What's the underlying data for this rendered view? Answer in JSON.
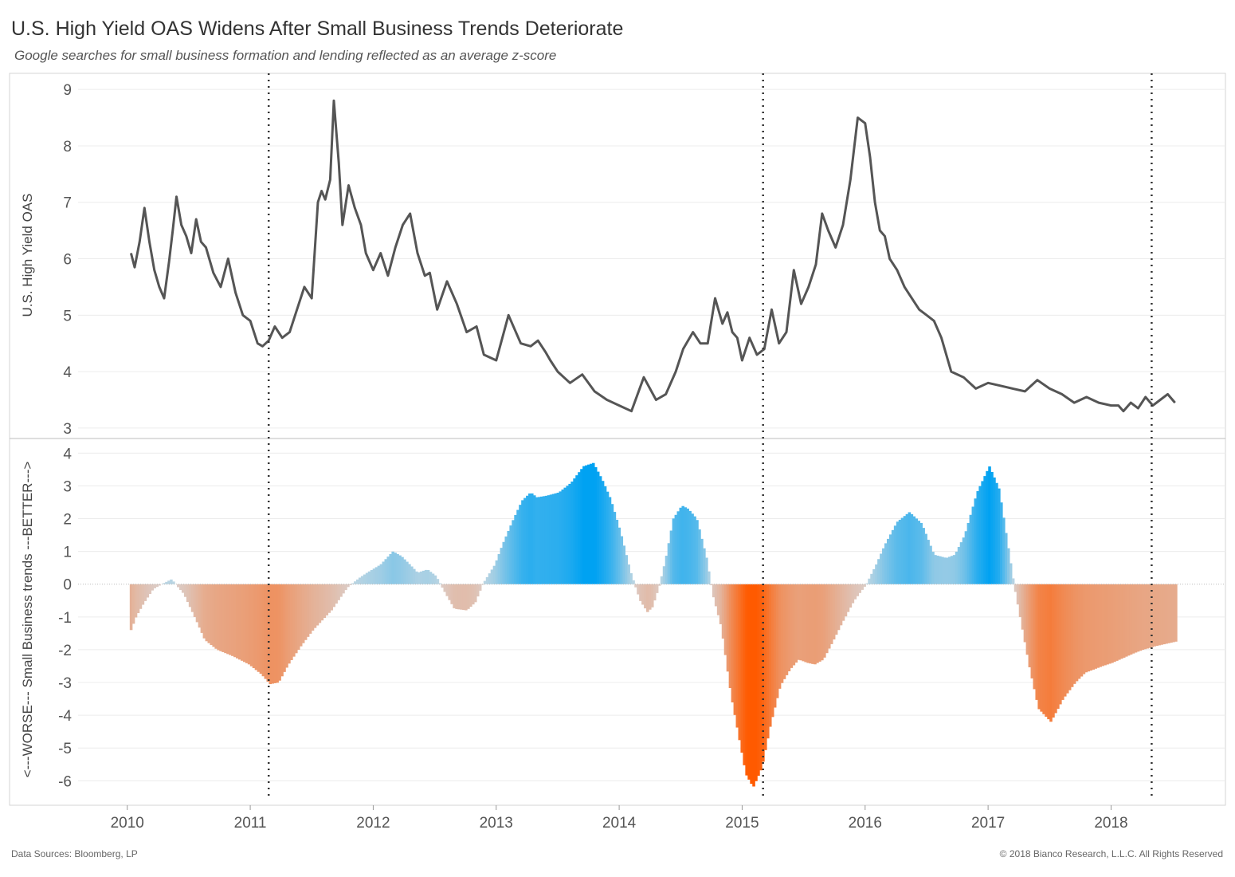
{
  "header": {
    "title": "U.S. High Yield OAS Widens After Small Business Trends Deteriorate",
    "subtitle": "Google searches for small business formation and lending reflected as an average z-score"
  },
  "footer": {
    "source": "Data Sources: Bloomberg, LP",
    "copyright": "© 2018 Bianco Research, L.L.C. All Rights Reserved"
  },
  "colors": {
    "line": "#555555",
    "positive_strong": "#00a2f2",
    "positive_weak": "#bfd6e2",
    "negative_strong": "#ff5a00",
    "negative_weak": "#dcccc6",
    "grid": "#ececec",
    "marker": "#333333"
  },
  "chart_data": [
    {
      "type": "line",
      "title": "U.S. High Yield OAS",
      "ylabel": "U.S. High Yield OAS",
      "ylim": [
        2.9,
        9.2
      ],
      "yticks": [
        3,
        4,
        5,
        6,
        7,
        8,
        9
      ],
      "xlim": [
        2009.6,
        2018.93
      ],
      "xticks": [
        2010,
        2011,
        2012,
        2013,
        2014,
        2015,
        2016,
        2017,
        2018
      ],
      "vertical_markers": [
        2011.15,
        2015.17,
        2018.33
      ],
      "grid": true,
      "series": [
        {
          "x": [
            2010.03,
            2010.06,
            2010.1,
            2010.14,
            2010.18,
            2010.22,
            2010.26,
            2010.3,
            2010.34,
            2010.37,
            2010.4,
            2010.44,
            2010.48,
            2010.52,
            2010.56,
            2010.6,
            2010.64,
            2010.7,
            2010.76,
            2010.82,
            2010.88,
            2010.94,
            2011.0,
            2011.06,
            2011.1,
            2011.15,
            2011.2,
            2011.26,
            2011.32,
            2011.38,
            2011.44,
            2011.5,
            2011.55,
            2011.58,
            2011.61,
            2011.65,
            2011.68,
            2011.72,
            2011.75,
            2011.8,
            2011.85,
            2011.9,
            2011.94,
            2012.0,
            2012.06,
            2012.12,
            2012.18,
            2012.24,
            2012.3,
            2012.36,
            2012.42,
            2012.46,
            2012.52,
            2012.6,
            2012.68,
            2012.76,
            2012.84,
            2012.9,
            2013.0,
            2013.1,
            2013.2,
            2013.28,
            2013.34,
            2013.4,
            2013.44,
            2013.5,
            2013.6,
            2013.7,
            2013.8,
            2013.9,
            2014.0,
            2014.1,
            2014.2,
            2014.3,
            2014.38,
            2014.46,
            2014.52,
            2014.6,
            2014.66,
            2014.72,
            2014.78,
            2014.84,
            2014.88,
            2014.92,
            2014.96,
            2015.0,
            2015.06,
            2015.12,
            2015.18,
            2015.24,
            2015.3,
            2015.36,
            2015.42,
            2015.48,
            2015.54,
            2015.6,
            2015.65,
            2015.7,
            2015.76,
            2015.82,
            2015.88,
            2015.94,
            2016.0,
            2016.04,
            2016.08,
            2016.12,
            2016.16,
            2016.2,
            2016.26,
            2016.32,
            2016.38,
            2016.44,
            2016.5,
            2016.56,
            2016.62,
            2016.7,
            2016.8,
            2016.9,
            2017.0,
            2017.1,
            2017.2,
            2017.3,
            2017.4,
            2017.5,
            2017.6,
            2017.7,
            2017.8,
            2017.9,
            2018.0,
            2018.06,
            2018.1,
            2018.16,
            2018.22,
            2018.28,
            2018.34,
            2018.4,
            2018.46,
            2018.52
          ],
          "y": [
            6.1,
            5.85,
            6.3,
            6.9,
            6.3,
            5.8,
            5.5,
            5.3,
            5.95,
            6.5,
            7.1,
            6.6,
            6.4,
            6.1,
            6.7,
            6.3,
            6.2,
            5.75,
            5.5,
            6.0,
            5.4,
            5.0,
            4.9,
            4.5,
            4.45,
            4.55,
            4.8,
            4.6,
            4.7,
            5.1,
            5.5,
            5.3,
            7.0,
            7.2,
            7.05,
            7.4,
            8.8,
            7.7,
            6.6,
            7.3,
            6.9,
            6.6,
            6.1,
            5.8,
            6.1,
            5.7,
            6.2,
            6.6,
            6.8,
            6.1,
            5.7,
            5.75,
            5.1,
            5.6,
            5.2,
            4.7,
            4.8,
            4.3,
            4.2,
            5.0,
            4.5,
            4.45,
            4.55,
            4.35,
            4.2,
            4.0,
            3.8,
            3.95,
            3.65,
            3.5,
            3.4,
            3.3,
            3.9,
            3.5,
            3.6,
            4.0,
            4.4,
            4.7,
            4.5,
            4.5,
            5.3,
            4.85,
            5.05,
            4.7,
            4.6,
            4.2,
            4.6,
            4.3,
            4.4,
            5.1,
            4.5,
            4.7,
            5.8,
            5.2,
            5.5,
            5.9,
            6.8,
            6.5,
            6.2,
            6.6,
            7.4,
            8.5,
            8.4,
            7.8,
            7.0,
            6.5,
            6.4,
            6.0,
            5.8,
            5.5,
            5.3,
            5.1,
            5.0,
            4.9,
            4.6,
            4.0,
            3.9,
            3.7,
            3.8,
            3.75,
            3.7,
            3.65,
            3.85,
            3.7,
            3.6,
            3.45,
            3.55,
            3.45,
            3.4,
            3.4,
            3.3,
            3.45,
            3.35,
            3.55,
            3.4,
            3.5,
            3.6,
            3.45
          ]
        }
      ]
    },
    {
      "type": "area",
      "title": "Small Business trends z-score",
      "ylabel": "<---WORSE--- Small Business trends ---BETTER--->",
      "ylim": [
        -6.6,
        4.3
      ],
      "yticks": [
        4,
        3,
        2,
        1,
        0,
        -1,
        -2,
        -3,
        -4,
        -5,
        -6
      ],
      "xlim": [
        2009.6,
        2018.93
      ],
      "xticks": [
        2010,
        2011,
        2012,
        2013,
        2014,
        2015,
        2016,
        2017,
        2018
      ],
      "series": [
        {
          "x": [
            2010.02,
            2010.06,
            2010.12,
            2010.2,
            2010.27,
            2010.35,
            2010.45,
            2010.55,
            2010.62,
            2010.72,
            2010.85,
            2010.98,
            2011.08,
            2011.15,
            2011.22,
            2011.3,
            2011.4,
            2011.5,
            2011.65,
            2011.78,
            2011.88,
            2011.94,
            2012.05,
            2012.15,
            2012.22,
            2012.3,
            2012.35,
            2012.43,
            2012.5,
            2012.58,
            2012.65,
            2012.75,
            2012.82,
            2012.88,
            2012.98,
            2013.04,
            2013.12,
            2013.2,
            2013.27,
            2013.32,
            2013.4,
            2013.5,
            2013.6,
            2013.7,
            2013.78,
            2013.85,
            2013.92,
            2014.0,
            2014.08,
            2014.16,
            2014.22,
            2014.26,
            2014.32,
            2014.37,
            2014.43,
            2014.5,
            2014.55,
            2014.62,
            2014.7,
            2014.75,
            2014.82,
            2014.9,
            2014.97,
            2015.02,
            2015.08,
            2015.15,
            2015.22,
            2015.3,
            2015.38,
            2015.45,
            2015.52,
            2015.58,
            2015.65,
            2015.72,
            2015.8,
            2015.9,
            2016.0,
            2016.08,
            2016.15,
            2016.25,
            2016.35,
            2016.45,
            2016.55,
            2016.65,
            2016.72,
            2016.8,
            2016.9,
            2017.0,
            2017.08,
            2017.15,
            2017.2,
            2017.26,
            2017.33,
            2017.4,
            2017.5,
            2017.6,
            2017.7,
            2017.78,
            2017.85,
            2017.92,
            2018.0,
            2018.06,
            2018.12,
            2018.18,
            2018.25,
            2018.3,
            2018.34,
            2018.4,
            2018.46,
            2018.52
          ],
          "values": [
            -1.4,
            -1.0,
            -0.6,
            -0.15,
            0.0,
            0.15,
            -0.3,
            -1.1,
            -1.7,
            -2.0,
            -2.2,
            -2.45,
            -2.75,
            -3.05,
            -3.0,
            -2.45,
            -1.9,
            -1.4,
            -0.8,
            -0.1,
            0.2,
            0.35,
            0.6,
            1.0,
            0.85,
            0.55,
            0.35,
            0.45,
            0.25,
            -0.3,
            -0.75,
            -0.8,
            -0.55,
            0.0,
            0.6,
            1.2,
            1.9,
            2.55,
            2.8,
            2.65,
            2.7,
            2.8,
            3.1,
            3.6,
            3.7,
            3.2,
            2.6,
            1.6,
            0.4,
            -0.5,
            -0.85,
            -0.7,
            0.0,
            0.8,
            2.0,
            2.4,
            2.3,
            2.0,
            0.8,
            -0.3,
            -1.3,
            -3.4,
            -4.8,
            -5.8,
            -6.2,
            -5.6,
            -4.3,
            -3.1,
            -2.6,
            -2.3,
            -2.4,
            -2.45,
            -2.3,
            -1.8,
            -1.2,
            -0.5,
            0.0,
            0.6,
            1.2,
            1.9,
            2.2,
            1.85,
            0.9,
            0.8,
            0.9,
            1.5,
            2.8,
            3.6,
            2.9,
            1.2,
            0.0,
            -1.2,
            -2.6,
            -3.8,
            -4.2,
            -3.5,
            -3.0,
            -2.7,
            -2.6,
            -2.5,
            -2.4,
            -2.3,
            -2.2,
            -2.1,
            -2.0,
            -1.95,
            -1.9,
            -1.85,
            -1.8,
            -1.75
          ]
        }
      ]
    }
  ]
}
